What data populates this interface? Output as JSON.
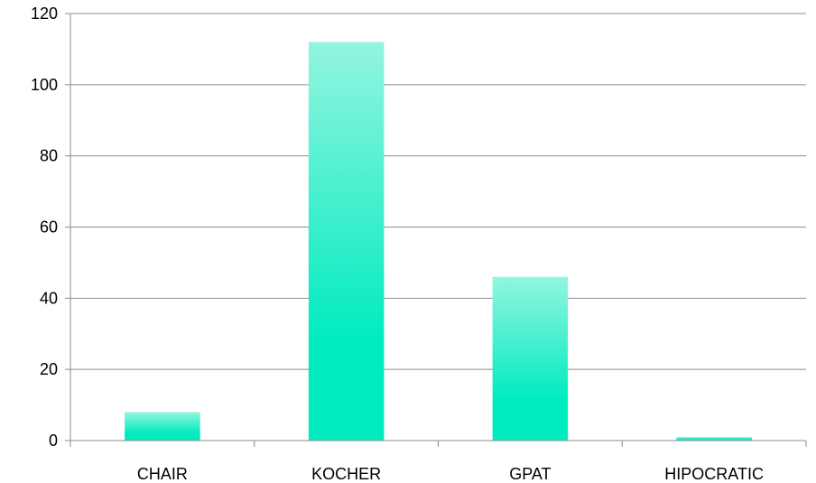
{
  "chart_data": {
    "type": "bar",
    "categories": [
      "CHAIR",
      "KOCHER",
      "GPAT",
      "HIPOCRATIC"
    ],
    "values": [
      8,
      112,
      46,
      1
    ],
    "ylim": [
      0,
      120
    ],
    "yticks": [
      0,
      20,
      40,
      60,
      80,
      100,
      120
    ],
    "grid": true,
    "legend": "none",
    "bar_color_top": "#93f5e0",
    "bar_color_bottom": "#00ebbf"
  }
}
